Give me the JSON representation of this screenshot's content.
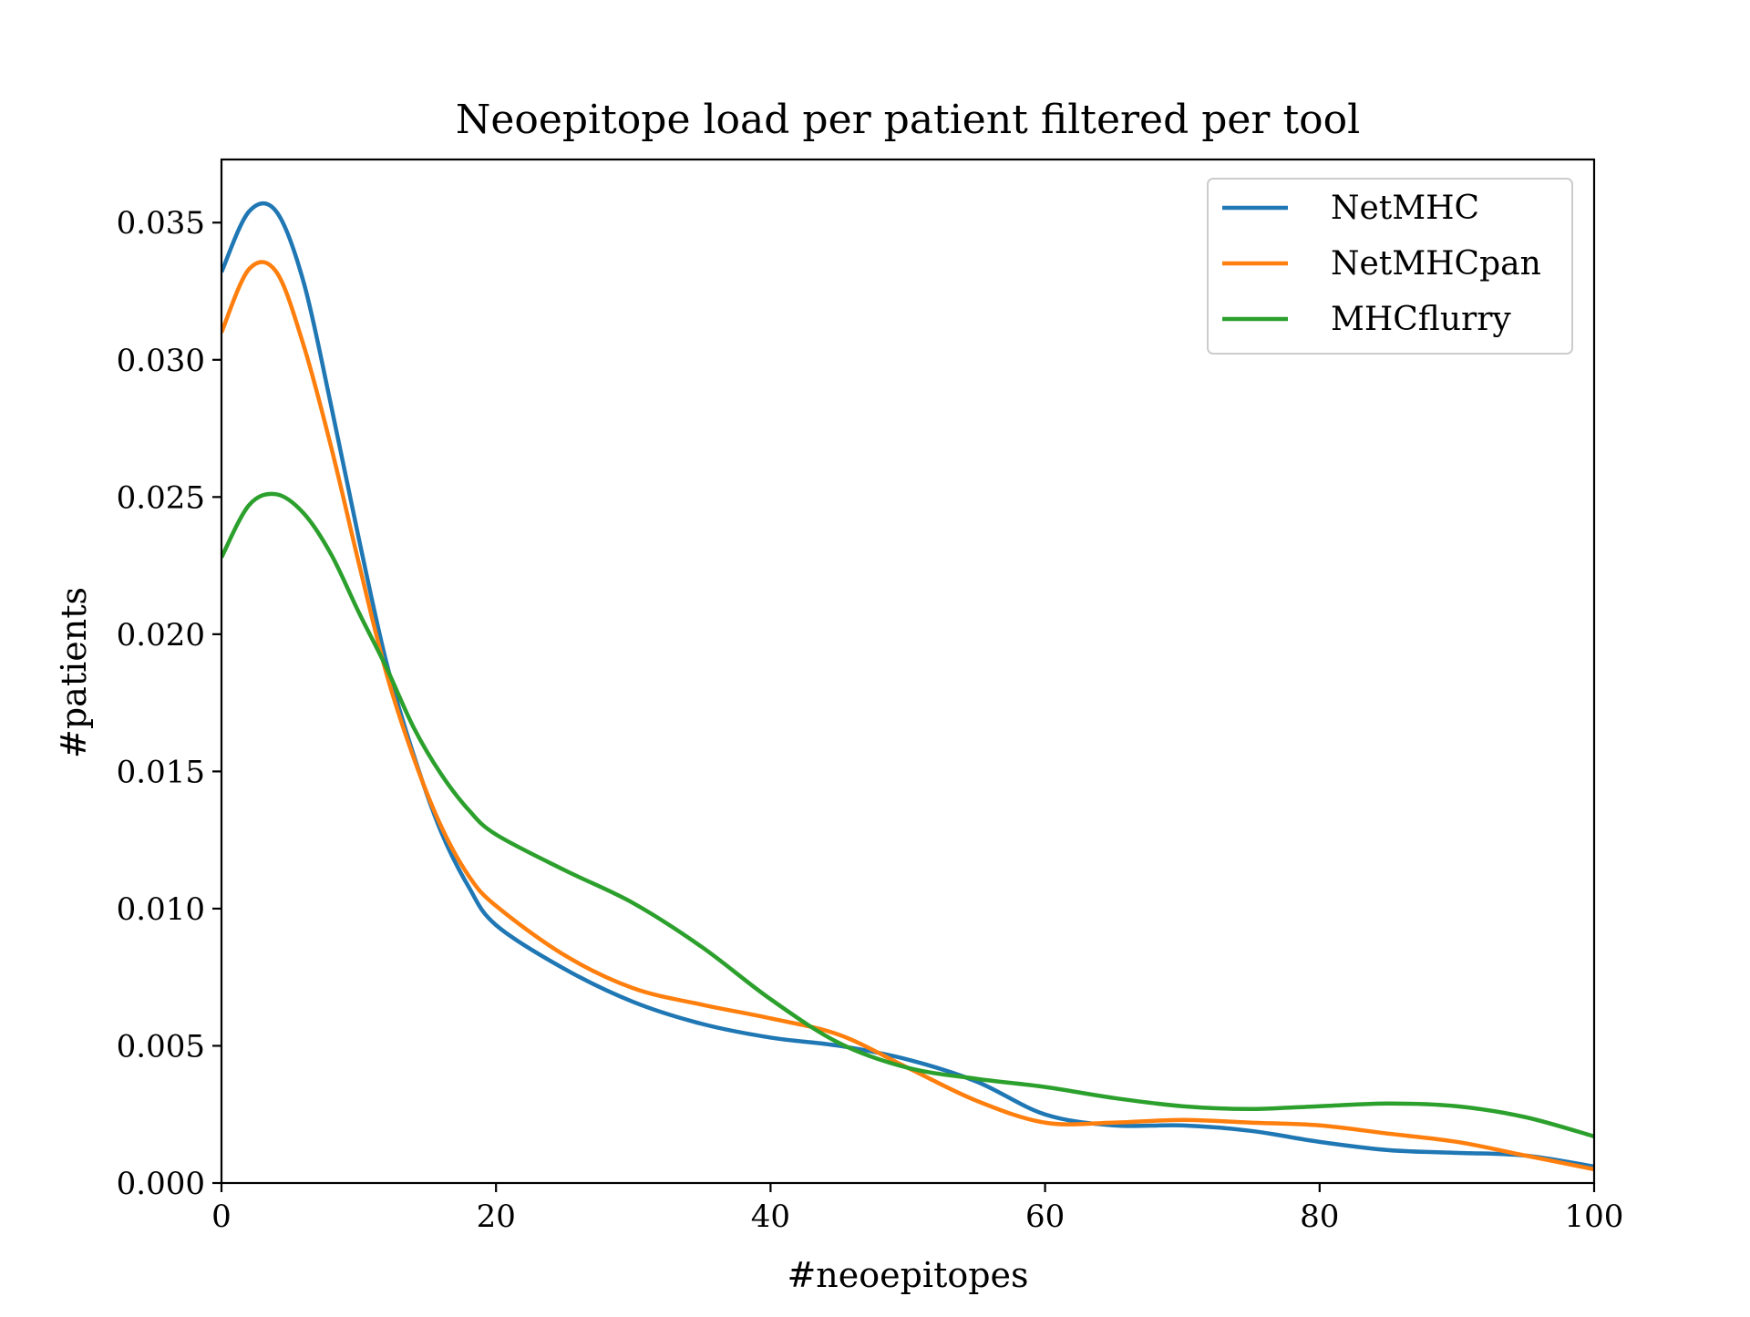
{
  "chart_data": {
    "type": "line",
    "title": "Neoepitope load per patient filtered per tool",
    "xlabel": "#neoepitopes",
    "ylabel": "#patients",
    "xlim": [
      0,
      100
    ],
    "ylim": [
      0,
      0.0373
    ],
    "xticks": [
      "0",
      "20",
      "40",
      "60",
      "80",
      "100"
    ],
    "yticks": [
      "0.000",
      "0.005",
      "0.010",
      "0.015",
      "0.020",
      "0.025",
      "0.030",
      "0.035"
    ],
    "legend_position": "top-right",
    "grid": false,
    "x": [
      0,
      2,
      4,
      6,
      8,
      10,
      12,
      14,
      16,
      18,
      20,
      25,
      30,
      35,
      40,
      45,
      50,
      55,
      60,
      65,
      70,
      75,
      80,
      85,
      90,
      95,
      100
    ],
    "series": [
      {
        "name": "NetMHC",
        "color": "#1f77b4",
        "values": [
          0.0332,
          0.0354,
          0.0354,
          0.0328,
          0.0283,
          0.0235,
          0.019,
          0.0156,
          0.0128,
          0.0108,
          0.0094,
          0.0078,
          0.0066,
          0.0058,
          0.0053,
          0.005,
          0.0045,
          0.0037,
          0.0025,
          0.0021,
          0.0021,
          0.0019,
          0.0015,
          0.0012,
          0.0011,
          0.001,
          0.0006
        ]
      },
      {
        "name": "NetMHCpan",
        "color": "#ff7f0e",
        "values": [
          0.031,
          0.0333,
          0.0332,
          0.0305,
          0.0268,
          0.0226,
          0.0186,
          0.0155,
          0.013,
          0.0112,
          0.0101,
          0.0083,
          0.0071,
          0.0065,
          0.006,
          0.0054,
          0.0042,
          0.003,
          0.0022,
          0.0022,
          0.0023,
          0.0022,
          0.0021,
          0.0018,
          0.0015,
          0.001,
          0.0005
        ]
      },
      {
        "name": "MHCflurry",
        "color": "#2ca02c",
        "values": [
          0.0228,
          0.0247,
          0.0251,
          0.0244,
          0.0229,
          0.0208,
          0.0188,
          0.0166,
          0.0149,
          0.0136,
          0.0127,
          0.0114,
          0.0102,
          0.0086,
          0.0067,
          0.0051,
          0.0042,
          0.0038,
          0.0035,
          0.0031,
          0.0028,
          0.0027,
          0.0028,
          0.0029,
          0.0028,
          0.0024,
          0.0017
        ]
      }
    ]
  }
}
